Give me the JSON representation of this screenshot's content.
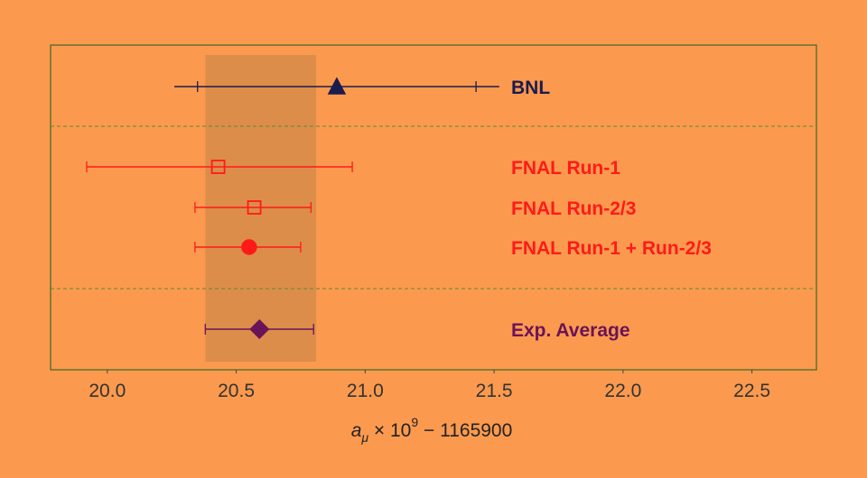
{
  "chart_data": {
    "type": "scatter",
    "title": "",
    "xlabel_base": "a",
    "xlabel_sub": "μ",
    "xlabel_mid": " × 10",
    "xlabel_sup": "9",
    "xlabel_tail": " − 1165900",
    "xlim": [
      19.78,
      22.75
    ],
    "xticks": [
      "20.0",
      "20.5",
      "21.0",
      "21.5",
      "22.0",
      "22.5"
    ],
    "xtick_values": [
      20.0,
      20.5,
      21.0,
      21.5,
      22.0,
      22.5
    ],
    "band": {
      "low": 20.38,
      "high": 20.81,
      "color": "#d4894a"
    },
    "groups": [
      "BNL",
      "FNAL",
      "Average"
    ],
    "series": [
      {
        "name": "BNL",
        "group": 0,
        "value": 20.89,
        "stat_low": 20.35,
        "stat_high": 21.43,
        "tot_low": 20.26,
        "tot_high": 21.52,
        "marker": "triangle",
        "filled": true,
        "color": "#1c1b4e"
      },
      {
        "name": "FNAL Run-1",
        "group": 1,
        "value": 20.43,
        "stat_low": 19.92,
        "stat_high": 20.95,
        "tot_low": 19.92,
        "tot_high": 20.95,
        "marker": "square",
        "filled": false,
        "color": "#ff1a1a"
      },
      {
        "name": "FNAL Run-2/3",
        "group": 1,
        "value": 20.57,
        "stat_low": 20.34,
        "stat_high": 20.79,
        "tot_low": 20.34,
        "tot_high": 20.79,
        "marker": "square",
        "filled": false,
        "color": "#ff1a1a"
      },
      {
        "name": "FNAL Run-1 + Run-2/3",
        "group": 1,
        "value": 20.55,
        "stat_low": 20.34,
        "stat_high": 20.75,
        "tot_low": 20.34,
        "tot_high": 20.75,
        "marker": "circle",
        "filled": true,
        "color": "#ff1a1a"
      },
      {
        "name": "Exp. Average",
        "group": 2,
        "value": 20.59,
        "stat_low": 20.38,
        "stat_high": 20.8,
        "tot_low": 20.38,
        "tot_high": 20.8,
        "marker": "diamond",
        "filled": true,
        "color": "#6a1457"
      }
    ]
  }
}
